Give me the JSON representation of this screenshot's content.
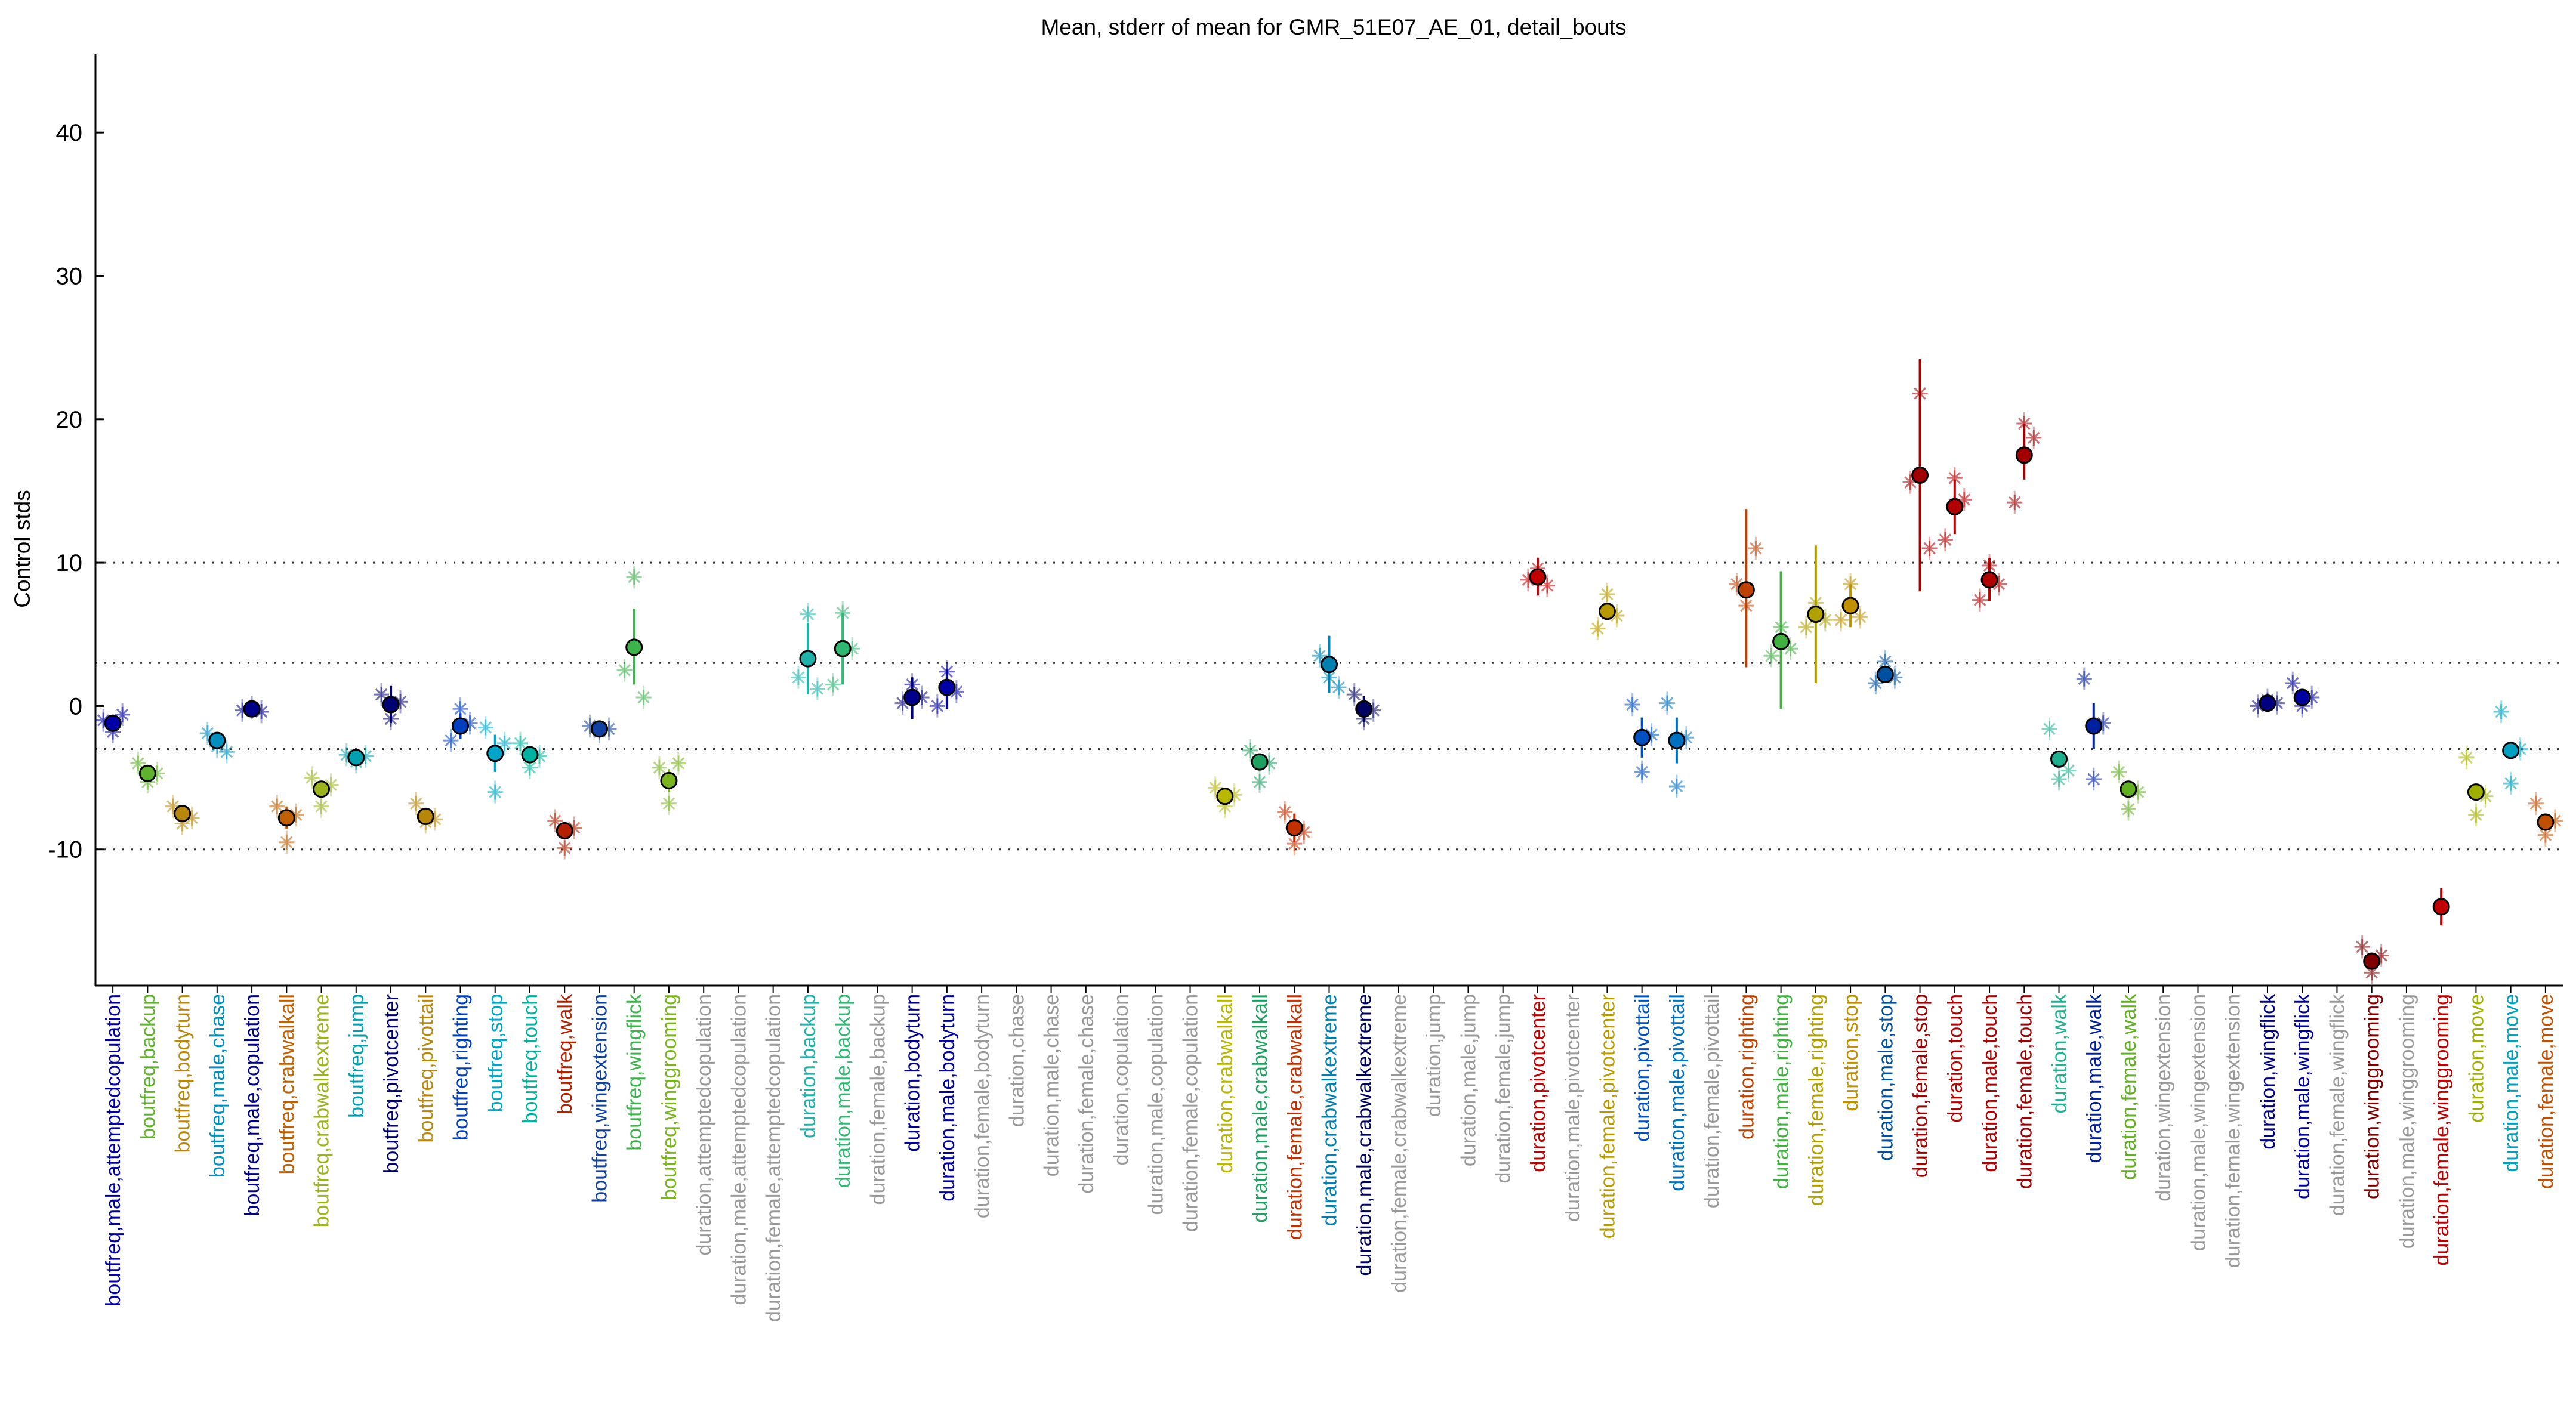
{
  "chart_data": {
    "type": "scatter",
    "title": "Mean, stderr of mean for GMR_51E07_AE_01, detail_bouts",
    "xlabel": "",
    "ylabel": "Control stds",
    "ylim": [
      -19.5,
      45.5
    ],
    "yticks": [
      -10,
      0,
      10,
      20,
      30,
      40
    ],
    "reference_lines": [
      -10,
      -3,
      3,
      10
    ],
    "grid": false,
    "legend": "none",
    "categories": [
      {
        "label": "boutfreq,male,attemptedcopulation",
        "color": "#0000a6",
        "mean": -1.2,
        "lo": -1.8,
        "hi": -0.6,
        "pts": [
          -1.0,
          -1.8,
          -0.6
        ]
      },
      {
        "label": "boutfreq,backup",
        "color": "#5fb22b",
        "mean": -4.7,
        "lo": -5.3,
        "hi": -4.1,
        "pts": [
          -4.0,
          -5.3,
          -4.7
        ]
      },
      {
        "label": "boutfreq,bodyturn",
        "color": "#b8860b",
        "mean": -7.5,
        "lo": -8.1,
        "hi": -6.9,
        "pts": [
          -7.0,
          -8.2,
          -7.8
        ]
      },
      {
        "label": "boutfreq,male,chase",
        "color": "#008fbf",
        "mean": -2.4,
        "lo": -3.0,
        "hi": -1.8,
        "pts": [
          -1.9,
          -2.8,
          -3.2
        ]
      },
      {
        "label": "boutfreq,male,copulation",
        "color": "#00008b",
        "mean": -0.2,
        "lo": -0.5,
        "hi": 0.1,
        "pts": [
          -0.3,
          -0.1,
          -0.4
        ]
      },
      {
        "label": "boutfreq,crabwalkall",
        "color": "#c06000",
        "mean": -7.8,
        "lo": -8.6,
        "hi": -7.0,
        "pts": [
          -7.0,
          -9.5,
          -7.6
        ]
      },
      {
        "label": "boutfreq,crabwalkextreme",
        "color": "#9cb31c",
        "mean": -5.8,
        "lo": -6.4,
        "hi": -5.2,
        "pts": [
          -5.0,
          -7.0,
          -5.5
        ]
      },
      {
        "label": "boutfreq,jump",
        "color": "#00a0b0",
        "mean": -3.6,
        "lo": -3.9,
        "hi": -3.3,
        "pts": [
          -3.4,
          -3.9,
          -3.5
        ]
      },
      {
        "label": "boutfreq,pivotcenter",
        "color": "#000070",
        "mean": 0.1,
        "lo": -1.2,
        "hi": 1.4,
        "pts": [
          0.8,
          -0.9,
          0.3
        ]
      },
      {
        "label": "boutfreq,pivottail",
        "color": "#b8860b",
        "mean": -7.7,
        "lo": -8.2,
        "hi": -7.2,
        "pts": [
          -6.8,
          -8.1,
          -7.9
        ]
      },
      {
        "label": "boutfreq,righting",
        "color": "#0040c0",
        "mean": -1.4,
        "lo": -2.3,
        "hi": -0.5,
        "pts": [
          -2.4,
          -0.2,
          -1.2
        ]
      },
      {
        "label": "boutfreq,stop",
        "color": "#00a6c8",
        "mean": -3.3,
        "lo": -4.6,
        "hi": -2.0,
        "pts": [
          -1.5,
          -6.0,
          -2.6
        ]
      },
      {
        "label": "boutfreq,touch",
        "color": "#00b3a0",
        "mean": -3.4,
        "lo": -4.0,
        "hi": -2.8,
        "pts": [
          -2.6,
          -4.3,
          -3.5
        ]
      },
      {
        "label": "boutfreq,walk",
        "color": "#b22200",
        "mean": -8.7,
        "lo": -9.3,
        "hi": -8.1,
        "pts": [
          -8.0,
          -9.9,
          -8.5
        ]
      },
      {
        "label": "boutfreq,wingextension",
        "color": "#1040a0",
        "mean": -1.6,
        "lo": -1.9,
        "hi": -1.3,
        "pts": [
          -1.4,
          -1.8,
          -1.6
        ]
      },
      {
        "label": "boutfreq,wingflick",
        "color": "#3cb44b",
        "mean": 4.1,
        "lo": 1.5,
        "hi": 6.8,
        "pts": [
          2.5,
          9.0,
          0.6
        ]
      },
      {
        "label": "boutfreq,winggrooming",
        "color": "#7ab51d",
        "mean": -5.2,
        "lo": -6.0,
        "hi": -4.4,
        "pts": [
          -4.3,
          -6.8,
          -4.0
        ]
      },
      {
        "label": "duration,attemptedcopulation",
        "color": "#999999"
      },
      {
        "label": "duration,male,attemptedcopulation",
        "color": "#999999"
      },
      {
        "label": "duration,female,attemptedcopulation",
        "color": "#999999"
      },
      {
        "label": "duration,backup",
        "color": "#20b2aa",
        "mean": 3.3,
        "lo": 0.8,
        "hi": 5.8,
        "pts": [
          2.0,
          6.4,
          1.2
        ]
      },
      {
        "label": "duration,male,backup",
        "color": "#2eb872",
        "mean": 4.0,
        "lo": 1.5,
        "hi": 6.5,
        "pts": [
          1.5,
          6.5,
          4.0
        ]
      },
      {
        "label": "duration,female,backup",
        "color": "#999999"
      },
      {
        "label": "duration,bodyturn",
        "color": "#00008b",
        "mean": 0.6,
        "lo": -0.9,
        "hi": 2.0,
        "pts": [
          0.2,
          1.5,
          0.6
        ]
      },
      {
        "label": "duration,male,bodyturn",
        "color": "#0000a6",
        "mean": 1.3,
        "lo": -0.2,
        "hi": 2.6,
        "pts": [
          0.0,
          2.4,
          1.0
        ]
      },
      {
        "label": "duration,female,bodyturn",
        "color": "#999999"
      },
      {
        "label": "duration,chase",
        "color": "#999999"
      },
      {
        "label": "duration,male,chase",
        "color": "#999999"
      },
      {
        "label": "duration,female,chase",
        "color": "#999999"
      },
      {
        "label": "duration,copulation",
        "color": "#999999"
      },
      {
        "label": "duration,male,copulation",
        "color": "#999999"
      },
      {
        "label": "duration,female,copulation",
        "color": "#999999"
      },
      {
        "label": "duration,crabwalkall",
        "color": "#b8b800",
        "mean": -6.3,
        "lo": -6.9,
        "hi": -5.7,
        "pts": [
          -5.7,
          -7.0,
          -6.2
        ]
      },
      {
        "label": "duration,male,crabwalkall",
        "color": "#20a060",
        "mean": -3.9,
        "lo": -4.5,
        "hi": -3.3,
        "pts": [
          -3.1,
          -5.3,
          -4.0
        ]
      },
      {
        "label": "duration,female,crabwalkall",
        "color": "#c03000",
        "mean": -8.5,
        "lo": -9.5,
        "hi": -7.5,
        "pts": [
          -7.4,
          -9.6,
          -8.8
        ]
      },
      {
        "label": "duration,crabwalkextreme",
        "color": "#0080b0",
        "mean": 2.9,
        "lo": 0.9,
        "hi": 4.9,
        "pts": [
          3.5,
          2.0,
          1.3
        ]
      },
      {
        "label": "duration,male,crabwalkextreme",
        "color": "#000060",
        "mean": -0.2,
        "lo": -1.1,
        "hi": 0.7,
        "pts": [
          0.8,
          -0.9,
          -0.3
        ]
      },
      {
        "label": "duration,female,crabwalkextreme",
        "color": "#999999"
      },
      {
        "label": "duration,jump",
        "color": "#999999"
      },
      {
        "label": "duration,male,jump",
        "color": "#999999"
      },
      {
        "label": "duration,female,jump",
        "color": "#999999"
      },
      {
        "label": "duration,pivotcenter",
        "color": "#c00000",
        "mean": 9.0,
        "lo": 7.7,
        "hi": 10.3,
        "pts": [
          8.8,
          9.6,
          8.4
        ]
      },
      {
        "label": "duration,male,pivotcenter",
        "color": "#999999"
      },
      {
        "label": "duration,female,pivotcenter",
        "color": "#b89a00",
        "mean": 6.6,
        "lo": 6.0,
        "hi": 7.2,
        "pts": [
          5.4,
          7.8,
          6.3
        ]
      },
      {
        "label": "duration,pivottail",
        "color": "#0050c0",
        "mean": -2.2,
        "lo": -3.6,
        "hi": -0.8,
        "pts": [
          0.1,
          -4.6,
          -2.0
        ]
      },
      {
        "label": "duration,male,pivottail",
        "color": "#0070c0",
        "mean": -2.4,
        "lo": -4.0,
        "hi": -0.8,
        "pts": [
          0.2,
          -5.6,
          -2.2
        ]
      },
      {
        "label": "duration,female,pivottail",
        "color": "#999999"
      },
      {
        "label": "duration,righting",
        "color": "#c04000",
        "mean": 8.1,
        "lo": 2.7,
        "hi": 13.7,
        "pts": [
          8.5,
          7.0,
          11.0
        ]
      },
      {
        "label": "duration,male,righting",
        "color": "#40b040",
        "mean": 4.5,
        "lo": -0.2,
        "hi": 9.4,
        "pts": [
          3.5,
          5.5,
          4.0
        ]
      },
      {
        "label": "duration,female,righting",
        "color": "#b0a000",
        "mean": 6.4,
        "lo": 1.6,
        "hi": 11.2,
        "pts": [
          5.5,
          7.2,
          6.0
        ]
      },
      {
        "label": "duration,stop",
        "color": "#c09000",
        "mean": 7.0,
        "lo": 5.5,
        "hi": 8.5,
        "pts": [
          6.0,
          8.5,
          6.2
        ]
      },
      {
        "label": "duration,male,stop",
        "color": "#0050a0",
        "mean": 2.2,
        "lo": 1.6,
        "hi": 2.8,
        "pts": [
          1.6,
          3.1,
          2.0
        ]
      },
      {
        "label": "duration,female,stop",
        "color": "#a00000",
        "mean": 16.1,
        "lo": 8.0,
        "hi": 24.2,
        "pts": [
          15.6,
          21.8,
          11.0
        ]
      },
      {
        "label": "duration,touch",
        "color": "#b00000",
        "mean": 13.9,
        "lo": 12.0,
        "hi": 15.8,
        "pts": [
          11.6,
          15.9,
          14.4
        ]
      },
      {
        "label": "duration,male,touch",
        "color": "#b00000",
        "mean": 8.8,
        "lo": 7.3,
        "hi": 10.3,
        "pts": [
          7.4,
          9.8,
          8.5
        ]
      },
      {
        "label": "duration,female,touch",
        "color": "#a00000",
        "mean": 17.5,
        "lo": 15.8,
        "hi": 19.7,
        "pts": [
          14.2,
          19.7,
          18.7
        ]
      },
      {
        "label": "duration,walk",
        "color": "#20b090",
        "mean": -3.7,
        "lo": -4.3,
        "hi": -3.1,
        "pts": [
          -1.6,
          -5.1,
          -4.5
        ]
      },
      {
        "label": "duration,male,walk",
        "color": "#0020a0",
        "mean": -1.4,
        "lo": -3.0,
        "hi": 0.2,
        "pts": [
          1.9,
          -5.1,
          -1.2
        ]
      },
      {
        "label": "duration,female,walk",
        "color": "#60b020",
        "mean": -5.8,
        "lo": -6.4,
        "hi": -5.2,
        "pts": [
          -4.6,
          -7.2,
          -6.0
        ]
      },
      {
        "label": "duration,wingextension",
        "color": "#999999"
      },
      {
        "label": "duration,male,wingextension",
        "color": "#999999"
      },
      {
        "label": "duration,female,wingextension",
        "color": "#999999"
      },
      {
        "label": "duration,wingflick",
        "color": "#000080",
        "mean": 0.2,
        "lo": -0.2,
        "hi": 0.6,
        "pts": [
          0.0,
          0.4,
          0.2
        ]
      },
      {
        "label": "duration,male,wingflick",
        "color": "#0000a0",
        "mean": 0.6,
        "lo": 0.0,
        "hi": 1.2,
        "pts": [
          1.6,
          0.0,
          0.6
        ]
      },
      {
        "label": "duration,female,wingflick",
        "color": "#999999"
      },
      {
        "label": "duration,winggrooming",
        "color": "#800000",
        "mean": -17.8,
        "lo": -18.4,
        "hi": -17.2,
        "pts": [
          -16.8,
          -18.6,
          -17.4
        ]
      },
      {
        "label": "duration,male,winggrooming",
        "color": "#999999"
      },
      {
        "label": "duration,female,winggrooming",
        "color": "#c00000",
        "mean": -14.0,
        "lo": -15.3,
        "hi": -12.7,
        "pts": []
      },
      {
        "label": "duration,move",
        "color": "#a0b000",
        "mean": -6.0,
        "lo": -6.6,
        "hi": -5.4,
        "pts": [
          -3.6,
          -7.6,
          -6.3
        ]
      },
      {
        "label": "duration,male,move",
        "color": "#00a0c0",
        "mean": -3.1,
        "lo": -3.6,
        "hi": -2.6,
        "pts": [
          -0.4,
          -5.4,
          -3.0
        ]
      },
      {
        "label": "duration,female,move",
        "color": "#c05000",
        "mean": -8.1,
        "lo": -8.7,
        "hi": -7.5,
        "pts": [
          -6.8,
          -9.0,
          -8.0
        ]
      }
    ]
  }
}
